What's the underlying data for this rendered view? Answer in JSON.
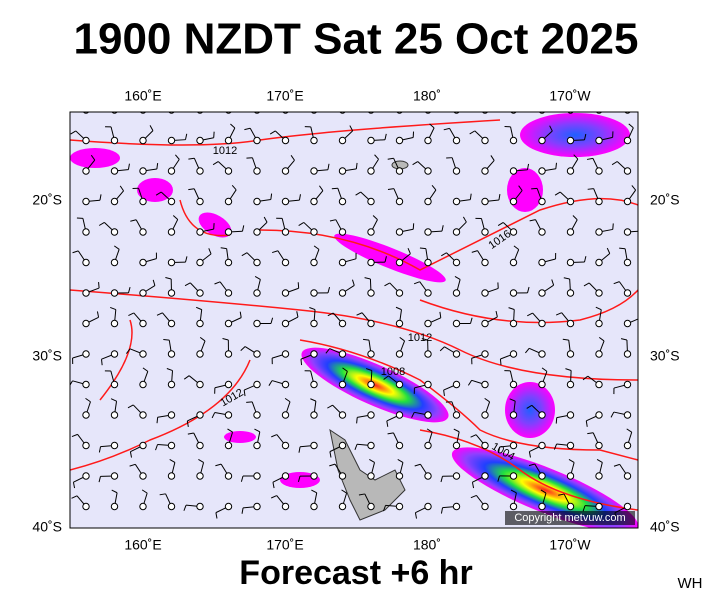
{
  "header": {
    "title": "1900 NZDT Sat 25 Oct 2025"
  },
  "map": {
    "lon_labels": [
      "160˚E",
      "170˚E",
      "180˚",
      "170˚W"
    ],
    "lat_labels": [
      "20˚S",
      "30˚S",
      "40˚S"
    ],
    "isobar_labels": [
      "1012",
      "1016",
      "1012",
      "1008",
      "1012",
      "1004"
    ],
    "copyright": "Copyright metvuw.com"
  },
  "footer": {
    "forecast": "Forecast +6 hr",
    "initials": "WH"
  }
}
